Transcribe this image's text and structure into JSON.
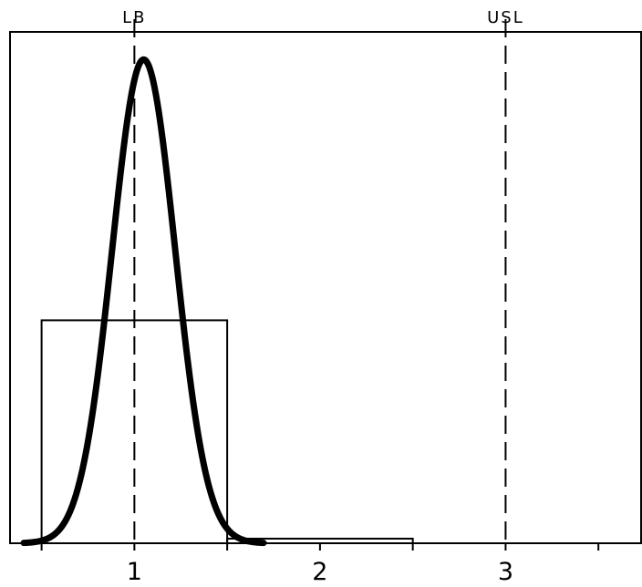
{
  "chart_data": {
    "type": "bar",
    "title": "",
    "xlabel": "",
    "ylabel": "",
    "x_ticks": [
      0.5,
      1,
      1.5,
      2,
      2.5,
      3,
      3.5
    ],
    "x_tick_labels": [
      {
        "value": 1,
        "label": "1"
      },
      {
        "value": 2,
        "label": "2"
      },
      {
        "value": 3,
        "label": "3"
      }
    ],
    "xlim": [
      0.33,
      3.73
    ],
    "ylim": [
      0,
      100
    ],
    "histogram": {
      "bins": [
        {
          "start": 0.5,
          "end": 1.5,
          "value": 43.6
        },
        {
          "start": 1.5,
          "end": 2.5,
          "value": 0.9
        },
        {
          "start": 2.5,
          "end": 3.5,
          "value": 0
        }
      ]
    },
    "fit_curve": {
      "type": "normal",
      "mean": 1.05,
      "sd": 0.17,
      "peak": 94.6
    },
    "reference_lines": [
      {
        "label": "LB",
        "value": 1,
        "style": "dashed"
      },
      {
        "label": "USL",
        "value": 3,
        "style": "dashed"
      }
    ],
    "grid": false,
    "legend": "none"
  }
}
